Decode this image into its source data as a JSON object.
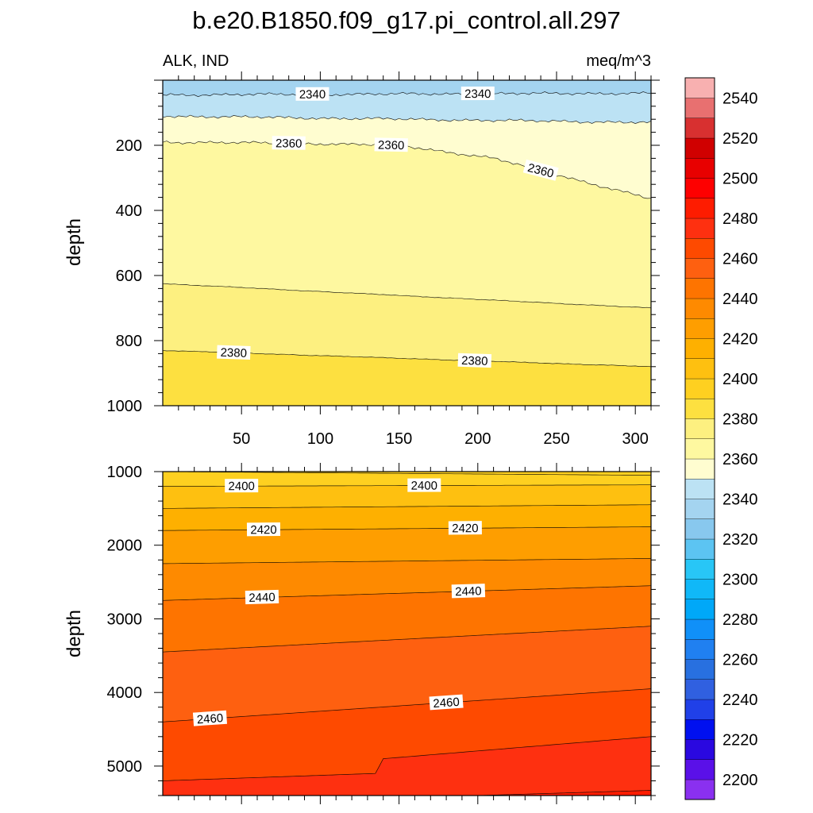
{
  "chart_data": [
    {
      "type": "contour",
      "panel": "upper",
      "title": "b.e20.B1850.f09_g17.pi_control.all.297",
      "left_label": "ALK, IND",
      "right_label": "meq/m^3",
      "xlabel": "",
      "ylabel": "depth",
      "xlim": [
        0,
        310
      ],
      "ylim": [
        1000,
        0
      ],
      "x_ticks": [
        50,
        100,
        150,
        200,
        250,
        300
      ],
      "y_ticks": [
        200,
        400,
        600,
        800,
        1000
      ],
      "contours": [
        {
          "level": 2340,
          "x": [
            0,
            310
          ],
          "depth": [
            45,
            40
          ],
          "labels_at_x": [
            95,
            200
          ]
        },
        {
          "level": 2350,
          "x": [
            0,
            310
          ],
          "depth": [
            110,
            130
          ]
        },
        {
          "level": 2360,
          "x": [
            0,
            100,
            150,
            210,
            250,
            310
          ],
          "depth": [
            190,
            195,
            200,
            240,
            290,
            365
          ],
          "labels_at_x": [
            80,
            145,
            240
          ]
        },
        {
          "level": 2370,
          "x": [
            0,
            310
          ],
          "depth": [
            625,
            700
          ]
        },
        {
          "level": 2380,
          "x": [
            0,
            310
          ],
          "depth": [
            830,
            880
          ],
          "labels_at_x": [
            45,
            198
          ]
        }
      ]
    },
    {
      "type": "contour",
      "panel": "lower",
      "xlabel": "",
      "ylabel": "depth",
      "xlim": [
        0,
        310
      ],
      "ylim": [
        5400,
        1000
      ],
      "y_ticks": [
        1000,
        2000,
        3000,
        4000,
        5000
      ],
      "contours": [
        {
          "level": 2395,
          "x": [
            0,
            310
          ],
          "depth": [
            1000,
            1050
          ]
        },
        {
          "level": 2400,
          "x": [
            0,
            310
          ],
          "depth": [
            1200,
            1180
          ],
          "labels_at_x": [
            50,
            166
          ]
        },
        {
          "level": 2410,
          "x": [
            0,
            310
          ],
          "depth": [
            1500,
            1450
          ]
        },
        {
          "level": 2420,
          "x": [
            0,
            310
          ],
          "depth": [
            1800,
            1750
          ],
          "labels_at_x": [
            64,
            192
          ]
        },
        {
          "level": 2430,
          "x": [
            0,
            310
          ],
          "depth": [
            2250,
            2180
          ]
        },
        {
          "level": 2440,
          "x": [
            0,
            310
          ],
          "depth": [
            2750,
            2550
          ],
          "labels_at_x": [
            63,
            194
          ]
        },
        {
          "level": 2450,
          "x": [
            0,
            310
          ],
          "depth": [
            3450,
            3100
          ]
        },
        {
          "level": 2460,
          "x": [
            0,
            310
          ],
          "depth": [
            4400,
            3950
          ],
          "labels_at_x": [
            30,
            180
          ]
        },
        {
          "level": 2470,
          "x": [
            0,
            135,
            140,
            310
          ],
          "depth": [
            5200,
            5100,
            4900,
            4600
          ]
        },
        {
          "level": 2480,
          "x": [
            200,
            310
          ],
          "depth": [
            5400,
            5330
          ]
        }
      ]
    }
  ],
  "colorbar": {
    "min": 2190,
    "max": 2560,
    "step": 10,
    "labels": [
      2200,
      2220,
      2240,
      2260,
      2280,
      2300,
      2320,
      2340,
      2360,
      2380,
      2400,
      2420,
      2440,
      2460,
      2480,
      2500,
      2520,
      2540
    ],
    "colors": [
      "#8a30f0",
      "#5a10e8",
      "#2a08e0",
      "#0010f0",
      "#2040e8",
      "#3060e0",
      "#2870e0",
      "#2080f0",
      "#1090f8",
      "#00a8f8",
      "#10b8f8",
      "#28c6f6",
      "#5cc4f2",
      "#88c8ee",
      "#a4d4f0",
      "#bce2f4",
      "#fffdd0",
      "#fef8a0",
      "#fdf080",
      "#fde040",
      "#fed020",
      "#fec010",
      "#feb000",
      "#fe9e00",
      "#fe8a00",
      "#fe7400",
      "#fe6010",
      "#fe4a00",
      "#fe3010",
      "#fe1c00",
      "#fe0000",
      "#e80000",
      "#d00000",
      "#d83030",
      "#e87070",
      "#f8b0b0"
    ]
  }
}
